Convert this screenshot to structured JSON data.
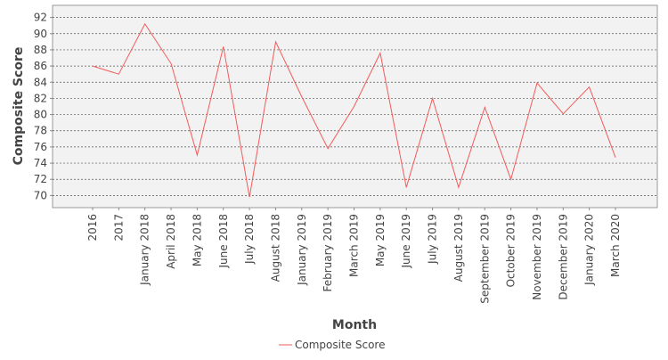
{
  "chart_data": {
    "type": "line",
    "xlabel": "Month",
    "ylabel": "Composite Score",
    "categories": [
      "2016",
      "2017",
      "January 2018",
      "April 2018",
      "May 2018",
      "June 2018",
      "July 2018",
      "August 2018",
      "January 2019",
      "February 2019",
      "March 2019",
      "May 2019",
      "June 2019",
      "July 2019",
      "August 2019",
      "September 2019",
      "October 2019",
      "November 2019",
      "December 2019",
      "January 2020",
      "March 2020"
    ],
    "ylim": [
      68.5,
      93.5
    ],
    "yticks": [
      70,
      72,
      74,
      76,
      78,
      80,
      82,
      84,
      86,
      88,
      90,
      92
    ],
    "grid": true,
    "legend_position": "bottom",
    "series": [
      {
        "name": "Composite Score",
        "color": "#f25b5b",
        "values": [
          86.0,
          85.0,
          91.2,
          86.3,
          75.0,
          88.4,
          69.8,
          89.0,
          82.2,
          75.8,
          81.0,
          87.6,
          71.0,
          82.0,
          71.0,
          80.9,
          72.0,
          83.9,
          80.1,
          83.4,
          74.7
        ]
      }
    ]
  }
}
